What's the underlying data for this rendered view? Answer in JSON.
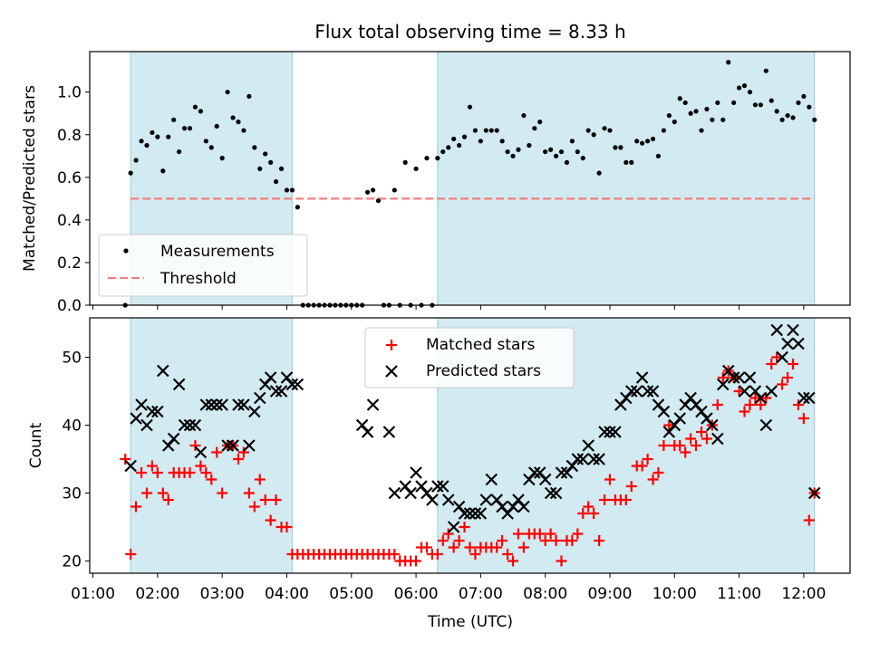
{
  "chart_data": [
    {
      "type": "scatter",
      "title": "Flux total observing time = 8.33 h",
      "ylabel": "Matched/Predicted stars",
      "xlabel": "",
      "ylim": [
        0,
        1.19
      ],
      "xlim": [
        "00:57",
        "12:43"
      ],
      "yticks": [
        "0.0",
        "0.2",
        "0.4",
        "0.6",
        "0.8",
        "1.0"
      ],
      "ytick_values": [
        0,
        0.2,
        0.4,
        0.6,
        0.8,
        1.0
      ],
      "shaded_intervals": [
        [
          "01:35",
          "04:05"
        ],
        [
          "06:20",
          "12:10"
        ]
      ],
      "threshold": 0.5,
      "threshold_range": [
        "01:35",
        "12:10"
      ],
      "legend_position": "lower-left",
      "legend": [
        "Measurements",
        "Threshold"
      ],
      "colors": {
        "shade": "#add8e6",
        "points": "#000000",
        "threshold": "#f08080"
      },
      "series": [
        {
          "name": "Measurements",
          "x": [
            "01:30",
            "01:35",
            "01:40",
            "01:45",
            "01:50",
            "01:55",
            "02:00",
            "02:05",
            "02:10",
            "02:15",
            "02:20",
            "02:25",
            "02:30",
            "02:35",
            "02:40",
            "02:45",
            "02:50",
            "02:55",
            "03:00",
            "03:05",
            "03:10",
            "03:15",
            "03:20",
            "03:25",
            "03:30",
            "03:35",
            "03:40",
            "03:45",
            "03:50",
            "03:55",
            "04:00",
            "04:05",
            "04:10",
            "04:15",
            "04:20",
            "04:25",
            "04:30",
            "04:35",
            "04:40",
            "04:45",
            "04:50",
            "04:55",
            "05:00",
            "05:05",
            "05:10",
            "05:15",
            "05:20",
            "05:25",
            "05:30",
            "05:35",
            "05:40",
            "05:45",
            "05:50",
            "05:55",
            "06:00",
            "06:05",
            "06:10",
            "06:15",
            "06:20",
            "06:25",
            "06:30",
            "06:35",
            "06:40",
            "06:45",
            "06:50",
            "06:55",
            "07:00",
            "07:05",
            "07:10",
            "07:15",
            "07:20",
            "07:25",
            "07:30",
            "07:35",
            "07:40",
            "07:45",
            "07:50",
            "07:55",
            "08:00",
            "08:05",
            "08:10",
            "08:15",
            "08:20",
            "08:25",
            "08:30",
            "08:35",
            "08:40",
            "08:45",
            "08:50",
            "08:55",
            "09:00",
            "09:05",
            "09:10",
            "09:15",
            "09:20",
            "09:25",
            "09:30",
            "09:35",
            "09:40",
            "09:45",
            "09:50",
            "09:55",
            "10:00",
            "10:05",
            "10:10",
            "10:15",
            "10:20",
            "10:25",
            "10:30",
            "10:35",
            "10:40",
            "10:45",
            "10:50",
            "10:55",
            "11:00",
            "11:05",
            "11:10",
            "11:15",
            "11:20",
            "11:25",
            "11:30",
            "11:35",
            "11:40",
            "11:45",
            "11:50",
            "11:55",
            "12:00",
            "12:05",
            "12:10"
          ],
          "y": [
            0.0,
            0.62,
            0.68,
            0.77,
            0.75,
            0.81,
            0.79,
            0.63,
            0.79,
            0.87,
            0.72,
            0.83,
            0.83,
            0.93,
            0.91,
            0.77,
            0.74,
            0.84,
            0.69,
            1.0,
            0.88,
            0.86,
            0.82,
            0.98,
            0.74,
            0.64,
            0.71,
            0.67,
            0.58,
            0.64,
            0.54,
            0.54,
            0.46,
            0.0,
            0.0,
            0.0,
            0.0,
            0.0,
            0.0,
            0.0,
            0.0,
            0.0,
            0.0,
            0.0,
            0.0,
            0.53,
            0.54,
            0.49,
            0.0,
            0.0,
            0.54,
            0.0,
            0.67,
            0.0,
            0.64,
            0.0,
            0.69,
            0.0,
            0.69,
            0.72,
            0.74,
            0.78,
            0.75,
            0.79,
            0.93,
            0.82,
            0.77,
            0.82,
            0.82,
            0.82,
            0.77,
            0.72,
            0.7,
            0.73,
            0.89,
            0.75,
            0.83,
            0.86,
            0.72,
            0.73,
            0.7,
            0.72,
            0.67,
            0.77,
            0.72,
            0.69,
            0.82,
            0.8,
            0.62,
            0.83,
            0.82,
            0.74,
            0.74,
            0.67,
            0.67,
            0.77,
            0.76,
            0.77,
            0.78,
            0.7,
            0.82,
            0.89,
            0.86,
            0.97,
            0.95,
            0.9,
            0.91,
            0.82,
            0.92,
            0.87,
            0.95,
            0.87,
            1.14,
            0.95,
            1.02,
            1.03,
            1.0,
            0.94,
            0.94,
            1.1,
            0.96,
            0.91,
            0.87,
            0.89,
            0.88,
            0.95,
            0.98,
            0.93,
            0.87
          ]
        }
      ]
    },
    {
      "type": "scatter",
      "title": "",
      "ylabel": "Count",
      "xlabel": "Time (UTC)",
      "ylim": [
        18.2,
        55.8
      ],
      "xlim": [
        "00:57",
        "12:43"
      ],
      "yticks": [
        "20",
        "30",
        "40",
        "50"
      ],
      "ytick_values": [
        20,
        30,
        40,
        50
      ],
      "xticks": [
        "01:00",
        "02:00",
        "03:00",
        "04:00",
        "05:00",
        "06:00",
        "07:00",
        "08:00",
        "09:00",
        "10:00",
        "11:00",
        "12:00"
      ],
      "shaded_intervals": [
        [
          "01:35",
          "04:05"
        ],
        [
          "06:20",
          "12:10"
        ]
      ],
      "legend_position": "upper-center",
      "legend": [
        "Matched stars",
        "Predicted stars"
      ],
      "colors": {
        "shade": "#add8e6",
        "matched": "#ff0000",
        "predicted": "#000000"
      },
      "series": [
        {
          "name": "Matched stars",
          "x": [
            "01:30",
            "01:35",
            "01:40",
            "01:45",
            "01:50",
            "01:55",
            "02:00",
            "02:05",
            "02:10",
            "02:15",
            "02:20",
            "02:25",
            "02:30",
            "02:35",
            "02:40",
            "02:45",
            "02:50",
            "02:55",
            "03:00",
            "03:05",
            "03:10",
            "03:15",
            "03:20",
            "03:25",
            "03:30",
            "03:35",
            "03:40",
            "03:45",
            "03:50",
            "03:55",
            "04:00",
            "04:05",
            "04:10",
            "04:15",
            "04:20",
            "04:25",
            "04:30",
            "04:35",
            "04:40",
            "04:45",
            "04:50",
            "04:55",
            "05:00",
            "05:05",
            "05:10",
            "05:15",
            "05:20",
            "05:25",
            "05:30",
            "05:35",
            "05:40",
            "05:45",
            "05:50",
            "05:55",
            "06:00",
            "06:05",
            "06:10",
            "06:15",
            "06:20",
            "06:25",
            "06:30",
            "06:35",
            "06:40",
            "06:45",
            "06:50",
            "06:55",
            "07:00",
            "07:05",
            "07:10",
            "07:15",
            "07:20",
            "07:25",
            "07:30",
            "07:35",
            "07:40",
            "07:45",
            "07:50",
            "07:55",
            "08:00",
            "08:05",
            "08:10",
            "08:15",
            "08:20",
            "08:25",
            "08:30",
            "08:35",
            "08:40",
            "08:45",
            "08:50",
            "08:55",
            "09:00",
            "09:05",
            "09:10",
            "09:15",
            "09:20",
            "09:25",
            "09:30",
            "09:35",
            "09:40",
            "09:45",
            "09:50",
            "09:55",
            "10:00",
            "10:05",
            "10:10",
            "10:15",
            "10:20",
            "10:25",
            "10:30",
            "10:35",
            "10:40",
            "10:45",
            "10:50",
            "10:55",
            "11:00",
            "11:05",
            "11:10",
            "11:15",
            "11:20",
            "11:25",
            "11:30",
            "11:35",
            "11:40",
            "11:45",
            "11:50",
            "11:55",
            "12:00",
            "12:05",
            "12:10"
          ],
          "y": [
            35,
            21,
            28,
            33,
            30,
            34,
            33,
            30,
            29,
            33,
            33,
            33,
            33,
            37,
            34,
            33,
            32,
            36,
            30,
            37,
            37,
            35,
            36,
            30,
            28,
            32,
            29,
            26,
            29,
            25,
            25,
            21,
            21,
            21,
            21,
            21,
            21,
            21,
            21,
            21,
            21,
            21,
            21,
            21,
            21,
            21,
            21,
            21,
            21,
            21,
            21,
            20,
            20,
            20,
            20,
            22,
            22,
            21,
            21,
            23,
            24,
            22,
            23,
            25,
            22,
            21,
            22,
            22,
            22,
            22,
            23,
            21,
            20,
            24,
            22,
            24,
            24,
            24,
            23,
            24,
            23,
            20,
            23,
            23,
            24,
            27,
            28,
            27,
            23,
            29,
            32,
            29,
            29,
            29,
            31,
            34,
            34,
            35,
            32,
            33,
            37,
            40,
            37,
            37,
            36,
            38,
            37,
            39,
            38,
            40,
            43,
            47,
            48,
            47,
            45,
            42,
            43,
            44,
            43,
            44,
            49,
            50,
            46,
            47,
            49,
            43,
            41,
            26,
            30
          ]
        },
        {
          "name": "Predicted stars",
          "x": [
            "01:35",
            "01:40",
            "01:45",
            "01:50",
            "01:55",
            "02:00",
            "02:05",
            "02:10",
            "02:15",
            "02:20",
            "02:25",
            "02:30",
            "02:35",
            "02:40",
            "02:45",
            "02:50",
            "02:55",
            "03:00",
            "03:05",
            "03:10",
            "03:15",
            "03:20",
            "03:25",
            "03:30",
            "03:35",
            "03:40",
            "03:45",
            "03:50",
            "03:55",
            "04:00",
            "04:05",
            "04:10",
            "05:10",
            "05:15",
            "05:20",
            "05:35",
            "05:40",
            "05:50",
            "05:55",
            "06:00",
            "06:05",
            "06:10",
            "06:15",
            "06:20",
            "06:25",
            "06:30",
            "06:35",
            "06:40",
            "06:45",
            "06:50",
            "06:55",
            "07:00",
            "07:05",
            "07:10",
            "07:15",
            "07:20",
            "07:25",
            "07:30",
            "07:35",
            "07:40",
            "07:45",
            "07:50",
            "07:55",
            "08:00",
            "08:05",
            "08:10",
            "08:15",
            "08:20",
            "08:25",
            "08:30",
            "08:35",
            "08:40",
            "08:45",
            "08:50",
            "08:55",
            "09:00",
            "09:05",
            "09:10",
            "09:15",
            "09:20",
            "09:25",
            "09:30",
            "09:35",
            "09:40",
            "09:45",
            "09:50",
            "09:55",
            "10:00",
            "10:05",
            "10:10",
            "10:15",
            "10:20",
            "10:25",
            "10:30",
            "10:35",
            "10:40",
            "10:45",
            "10:50",
            "10:55",
            "11:00",
            "11:05",
            "11:10",
            "11:15",
            "11:20",
            "11:25",
            "11:30",
            "11:35",
            "11:40",
            "11:45",
            "11:50",
            "11:55",
            "12:00",
            "12:05",
            "12:10"
          ],
          "y": [
            34,
            41,
            43,
            40,
            42,
            42,
            48,
            37,
            38,
            46,
            40,
            40,
            40,
            36,
            43,
            43,
            43,
            43,
            37,
            37,
            43,
            43,
            37,
            42,
            44,
            46,
            47,
            45,
            45,
            47,
            46,
            46,
            40,
            39,
            43,
            39,
            30,
            31,
            30,
            33,
            31,
            30,
            29,
            31,
            31,
            29,
            25,
            28,
            27,
            27,
            27,
            27,
            29,
            32,
            29,
            28,
            27,
            28,
            29,
            28,
            32,
            33,
            33,
            32,
            30,
            30,
            33,
            33,
            34,
            35,
            35,
            37,
            35,
            35,
            39,
            39,
            39,
            43,
            44,
            45,
            45,
            47,
            45,
            45,
            43,
            42,
            39,
            40,
            41,
            43,
            44,
            43,
            42,
            41,
            40,
            38,
            46,
            48,
            47,
            47,
            45,
            47,
            45,
            44,
            40,
            45,
            54,
            50,
            52,
            54,
            52,
            44,
            44,
            30
          ]
        }
      ]
    }
  ]
}
